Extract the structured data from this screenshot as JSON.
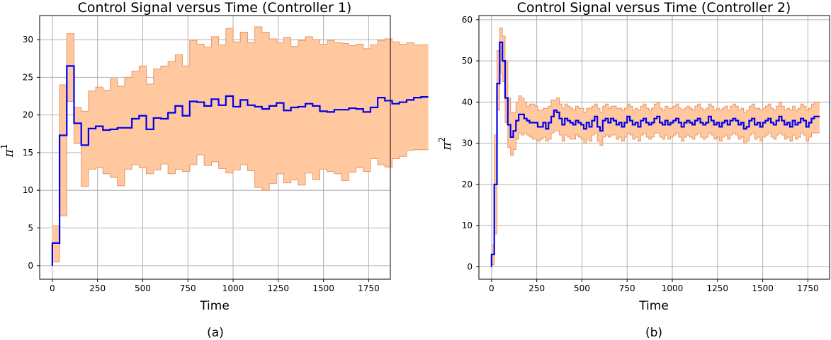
{
  "colors": {
    "mean_line": "#0000ee",
    "band_fill": "#ffc89e",
    "band_edge": "#e8976c",
    "grid": "#b0b0b0"
  },
  "chart_data": [
    {
      "type": "line",
      "title": "Control Signal versus Time (Controller 1)",
      "xlabel": "Time",
      "ylabel_base": "π",
      "ylabel_sup": "1",
      "caption": "(a)",
      "xlim": [
        -70,
        1870
      ],
      "ylim": [
        -1.8,
        33.2
      ],
      "xticks": [
        0,
        250,
        500,
        750,
        1000,
        1250,
        1500,
        1750
      ],
      "yticks": [
        0,
        5,
        10,
        15,
        20,
        25,
        30
      ],
      "grid": true,
      "step_width": 40,
      "series": [
        {
          "role": "mean",
          "values": [
            3.0,
            17.3,
            26.5,
            18.9,
            16.0,
            18.2,
            18.5,
            18.0,
            18.1,
            18.3,
            18.3,
            19.5,
            19.9,
            18.1,
            19.6,
            19.5,
            20.3,
            21.2,
            19.9,
            21.8,
            21.7,
            21.2,
            22.1,
            21.3,
            22.5,
            21.1,
            22.0,
            21.3,
            21.1,
            20.8,
            21.2,
            21.6,
            20.6,
            21.0,
            21.1,
            21.5,
            21.2,
            20.5,
            20.4,
            20.7,
            20.7,
            20.9,
            20.8,
            20.4,
            21.0,
            22.3,
            21.9,
            21.5,
            21.7,
            22.0,
            22.3,
            22.4
          ]
        },
        {
          "role": "upper",
          "values": [
            5.3,
            24.0,
            30.8,
            21.0,
            20.5,
            23.2,
            23.7,
            23.3,
            24.8,
            23.8,
            25.0,
            25.8,
            26.5,
            24.1,
            26.1,
            26.5,
            27.1,
            28.0,
            26.5,
            29.9,
            29.4,
            29.0,
            30.4,
            29.3,
            31.5,
            29.7,
            31.0,
            29.6,
            31.7,
            31.0,
            30.1,
            29.6,
            30.3,
            29.1,
            29.9,
            30.4,
            30.0,
            29.4,
            29.9,
            29.6,
            29.5,
            29.2,
            29.4,
            28.8,
            29.3,
            29.9,
            30.1,
            29.7,
            29.4,
            29.6,
            29.3,
            29.3
          ]
        },
        {
          "role": "lower",
          "values": [
            0.5,
            6.6,
            21.8,
            16.2,
            10.5,
            12.8,
            13.0,
            12.2,
            11.7,
            10.6,
            12.8,
            13.4,
            13.0,
            12.2,
            12.7,
            13.5,
            12.2,
            12.8,
            12.5,
            13.4,
            14.7,
            13.3,
            13.8,
            12.9,
            12.3,
            12.7,
            13.4,
            12.6,
            10.4,
            10.0,
            10.9,
            12.2,
            11.0,
            11.4,
            10.7,
            12.3,
            11.4,
            12.8,
            12.5,
            12.2,
            11.3,
            12.4,
            13.0,
            12.5,
            14.2,
            13.4,
            13.1,
            14.2,
            14.5,
            15.3,
            15.4,
            15.4
          ]
        }
      ]
    },
    {
      "type": "line",
      "title": "Control Signal versus Time (Controller 2)",
      "xlabel": "Time",
      "ylabel_base": "π",
      "ylabel_sup": "2",
      "caption": "(b)",
      "xlim": [
        -70,
        1870
      ],
      "ylim": [
        -3.0,
        61.0
      ],
      "xticks": [
        0,
        250,
        500,
        750,
        1000,
        1250,
        1500,
        1750
      ],
      "yticks": [
        0,
        10,
        20,
        30,
        40,
        50,
        60
      ],
      "grid": true,
      "step_width": 15,
      "series": [
        {
          "role": "mean",
          "values": [
            3.0,
            20.0,
            44.5,
            54.5,
            50.0,
            41.0,
            34.5,
            31.5,
            33.0,
            35.5,
            37.0,
            37.0,
            36.0,
            35.5,
            35.0,
            35.0,
            35.0,
            34.0,
            34.0,
            35.0,
            33.5,
            35.0,
            36.5,
            38.0,
            37.5,
            36.0,
            34.5,
            36.0,
            35.5,
            35.0,
            34.5,
            35.5,
            35.0,
            34.5,
            33.5,
            35.0,
            34.0,
            35.5,
            36.5,
            34.0,
            33.0,
            35.5,
            36.0,
            35.0,
            36.0,
            35.5,
            34.5,
            35.0,
            34.0,
            35.0,
            36.5,
            35.5,
            34.5,
            35.0,
            34.0,
            35.5,
            36.0,
            35.0,
            34.5,
            35.0,
            36.0,
            36.5,
            35.0,
            34.5,
            35.5,
            34.5,
            35.0,
            35.5,
            36.0,
            35.0,
            34.0,
            35.0,
            35.5,
            35.0,
            34.5,
            35.5,
            36.0,
            35.0,
            34.5,
            35.0,
            36.5,
            35.5,
            34.5,
            35.0,
            34.0,
            35.0,
            35.5,
            34.5,
            35.5,
            36.0,
            35.5,
            34.5,
            35.0,
            33.5,
            34.0,
            35.5,
            36.0,
            34.5,
            35.0,
            34.0,
            35.0,
            35.5,
            36.0,
            35.0,
            34.5,
            35.5,
            36.5,
            35.5,
            34.5,
            35.0,
            34.0,
            35.5,
            34.5,
            35.0,
            36.0,
            35.5,
            34.0,
            35.0,
            36.0,
            36.5,
            36.5
          ]
        },
        {
          "role": "upper",
          "values": [
            5.3,
            32.0,
            52.5,
            58.0,
            56.0,
            50.0,
            41.0,
            37.5,
            37.5,
            40.0,
            41.5,
            41.0,
            40.0,
            39.0,
            39.5,
            39.5,
            39.0,
            38.0,
            38.0,
            38.5,
            38.5,
            39.0,
            40.5,
            40.5,
            41.0,
            39.5,
            38.5,
            39.5,
            39.0,
            38.5,
            38.0,
            39.0,
            38.5,
            38.5,
            37.5,
            38.5,
            38.5,
            39.0,
            39.5,
            38.5,
            37.5,
            39.0,
            39.5,
            38.5,
            39.0,
            39.0,
            38.5,
            38.5,
            38.0,
            38.5,
            39.5,
            39.0,
            38.0,
            38.5,
            38.0,
            39.0,
            39.5,
            38.5,
            38.0,
            38.5,
            39.5,
            40.0,
            38.5,
            38.0,
            39.0,
            38.5,
            38.5,
            39.0,
            39.5,
            38.5,
            38.0,
            38.5,
            39.0,
            38.5,
            38.0,
            39.0,
            39.5,
            38.5,
            38.0,
            38.5,
            39.5,
            39.0,
            38.0,
            38.5,
            38.0,
            38.5,
            39.0,
            38.0,
            39.0,
            39.5,
            39.0,
            38.0,
            38.5,
            37.5,
            38.0,
            39.0,
            39.5,
            38.5,
            38.5,
            38.0,
            38.5,
            39.0,
            39.5,
            38.5,
            38.0,
            39.0,
            40.0,
            39.0,
            38.0,
            38.5,
            38.0,
            39.0,
            38.0,
            38.5,
            39.5,
            39.0,
            38.0,
            38.5,
            39.5,
            40.0,
            40.0
          ]
        },
        {
          "role": "lower",
          "values": [
            0.5,
            8.0,
            38.0,
            47.0,
            45.0,
            35.0,
            29.0,
            27.0,
            28.5,
            31.0,
            32.5,
            32.0,
            32.5,
            32.0,
            31.5,
            31.0,
            31.0,
            30.5,
            31.0,
            31.5,
            30.5,
            31.0,
            32.5,
            33.0,
            33.0,
            32.0,
            30.5,
            32.0,
            31.5,
            31.0,
            31.0,
            32.0,
            31.5,
            31.0,
            30.0,
            31.0,
            30.5,
            32.0,
            32.5,
            30.5,
            29.5,
            31.5,
            32.0,
            31.5,
            32.0,
            32.0,
            31.0,
            31.5,
            30.5,
            31.5,
            32.5,
            32.0,
            31.0,
            31.5,
            30.5,
            32.0,
            32.5,
            31.5,
            31.0,
            31.5,
            32.5,
            32.5,
            31.5,
            31.0,
            32.0,
            31.0,
            31.5,
            32.0,
            32.5,
            31.5,
            30.5,
            31.5,
            32.0,
            31.5,
            31.0,
            32.0,
            32.5,
            31.5,
            31.0,
            31.5,
            32.5,
            32.0,
            31.0,
            31.5,
            30.5,
            31.5,
            32.0,
            31.0,
            32.0,
            32.5,
            32.0,
            31.0,
            31.5,
            30.0,
            30.5,
            32.0,
            32.5,
            31.0,
            31.5,
            30.5,
            31.5,
            32.0,
            32.5,
            31.5,
            31.0,
            32.0,
            32.5,
            32.0,
            31.0,
            31.5,
            30.5,
            32.0,
            31.0,
            31.5,
            32.5,
            32.0,
            30.5,
            31.5,
            32.5,
            32.5,
            32.5
          ]
        }
      ]
    }
  ]
}
